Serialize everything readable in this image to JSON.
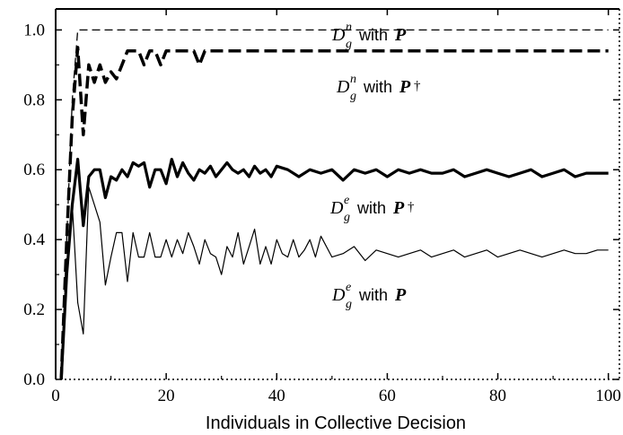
{
  "chart_data": {
    "type": "line",
    "title": "",
    "xlabel": "Individuals in Collective Decision",
    "ylabel": "",
    "xlim": [
      0,
      102
    ],
    "ylim": [
      0.0,
      1.06
    ],
    "x_ticks": [
      0,
      20,
      40,
      60,
      80,
      100
    ],
    "x_tick_labels": [
      "0",
      "20",
      "40",
      "60",
      "80",
      "100"
    ],
    "y_ticks": [
      0.0,
      0.2,
      0.4,
      0.6,
      0.8,
      1.0
    ],
    "y_tick_labels": [
      "0.0",
      "0.2",
      "0.4",
      "0.6",
      "0.8",
      "1.0"
    ],
    "grid": false,
    "series": [
      {
        "label_main": "D",
        "label_sup": "n",
        "label_sub": "g",
        "label_text": "with",
        "label_bold": "P",
        "label_dagger": "",
        "style": "thin-dashed",
        "x": [
          1,
          2,
          3,
          4,
          5,
          6,
          8,
          10,
          15,
          20,
          30,
          40,
          50,
          60,
          70,
          80,
          90,
          100
        ],
        "y": [
          0.0,
          0.4,
          0.8,
          1.0,
          1.0,
          1.0,
          1.0,
          1.0,
          1.0,
          1.0,
          1.0,
          1.0,
          1.0,
          1.0,
          1.0,
          1.0,
          1.0,
          1.0
        ]
      },
      {
        "label_main": "D",
        "label_sup": "n",
        "label_sub": "g",
        "label_text": "with",
        "label_bold": "P",
        "label_dagger": "†",
        "style": "thick-dashed",
        "x": [
          1,
          2,
          3,
          4,
          5,
          6,
          7,
          8,
          9,
          10,
          11,
          12,
          13,
          14,
          15,
          16,
          17,
          18,
          19,
          20,
          21,
          22,
          23,
          24,
          25,
          26,
          27,
          28,
          30,
          40,
          50,
          60,
          70,
          80,
          90,
          100
        ],
        "y": [
          0.0,
          0.4,
          0.75,
          0.95,
          0.7,
          0.9,
          0.85,
          0.9,
          0.85,
          0.88,
          0.86,
          0.9,
          0.94,
          0.94,
          0.94,
          0.9,
          0.94,
          0.94,
          0.9,
          0.94,
          0.94,
          0.94,
          0.94,
          0.94,
          0.94,
          0.9,
          0.94,
          0.94,
          0.94,
          0.94,
          0.94,
          0.94,
          0.94,
          0.94,
          0.94,
          0.94
        ]
      },
      {
        "label_main": "D",
        "label_sup": "e",
        "label_sub": "g",
        "label_text": "with",
        "label_bold": "P",
        "label_dagger": "†",
        "style": "thick-solid",
        "x": [
          1,
          2,
          3,
          4,
          5,
          6,
          7,
          8,
          9,
          10,
          11,
          12,
          13,
          14,
          15,
          16,
          17,
          18,
          19,
          20,
          21,
          22,
          23,
          24,
          25,
          26,
          27,
          28,
          29,
          30,
          31,
          32,
          33,
          34,
          35,
          36,
          37,
          38,
          39,
          40,
          42,
          44,
          46,
          48,
          50,
          52,
          54,
          56,
          58,
          60,
          62,
          64,
          66,
          68,
          70,
          72,
          74,
          76,
          78,
          80,
          82,
          84,
          86,
          88,
          90,
          92,
          94,
          96,
          98,
          100
        ],
        "y": [
          0.0,
          0.3,
          0.5,
          0.63,
          0.44,
          0.58,
          0.6,
          0.6,
          0.52,
          0.58,
          0.57,
          0.6,
          0.58,
          0.62,
          0.61,
          0.62,
          0.55,
          0.6,
          0.6,
          0.56,
          0.63,
          0.58,
          0.62,
          0.59,
          0.57,
          0.6,
          0.59,
          0.61,
          0.58,
          0.6,
          0.62,
          0.6,
          0.59,
          0.6,
          0.58,
          0.61,
          0.59,
          0.6,
          0.58,
          0.61,
          0.6,
          0.58,
          0.6,
          0.59,
          0.6,
          0.57,
          0.6,
          0.59,
          0.6,
          0.58,
          0.6,
          0.59,
          0.6,
          0.59,
          0.59,
          0.6,
          0.58,
          0.59,
          0.6,
          0.59,
          0.58,
          0.59,
          0.6,
          0.58,
          0.59,
          0.6,
          0.58,
          0.59,
          0.59,
          0.59
        ]
      },
      {
        "label_main": "D",
        "label_sup": "e",
        "label_sub": "g",
        "label_text": "with",
        "label_bold": "P",
        "label_dagger": "",
        "style": "thin-solid",
        "x": [
          1,
          2,
          3,
          4,
          5,
          6,
          7,
          8,
          9,
          10,
          11,
          12,
          13,
          14,
          15,
          16,
          17,
          18,
          19,
          20,
          21,
          22,
          23,
          24,
          25,
          26,
          27,
          28,
          29,
          30,
          31,
          32,
          33,
          34,
          35,
          36,
          37,
          38,
          39,
          40,
          41,
          42,
          43,
          44,
          45,
          46,
          47,
          48,
          50,
          52,
          54,
          56,
          58,
          60,
          62,
          64,
          66,
          68,
          70,
          72,
          74,
          76,
          78,
          80,
          82,
          84,
          86,
          88,
          90,
          92,
          94,
          96,
          98,
          100
        ],
        "y": [
          0.0,
          0.3,
          0.5,
          0.22,
          0.13,
          0.55,
          0.5,
          0.45,
          0.27,
          0.35,
          0.42,
          0.42,
          0.28,
          0.42,
          0.35,
          0.35,
          0.42,
          0.35,
          0.35,
          0.4,
          0.35,
          0.4,
          0.36,
          0.42,
          0.38,
          0.33,
          0.4,
          0.36,
          0.35,
          0.3,
          0.38,
          0.35,
          0.42,
          0.33,
          0.38,
          0.43,
          0.33,
          0.38,
          0.33,
          0.4,
          0.36,
          0.35,
          0.4,
          0.35,
          0.37,
          0.4,
          0.35,
          0.41,
          0.35,
          0.36,
          0.38,
          0.34,
          0.37,
          0.36,
          0.35,
          0.36,
          0.37,
          0.35,
          0.36,
          0.37,
          0.35,
          0.36,
          0.37,
          0.35,
          0.36,
          0.37,
          0.36,
          0.35,
          0.36,
          0.37,
          0.36,
          0.36,
          0.37,
          0.37
        ]
      }
    ]
  }
}
